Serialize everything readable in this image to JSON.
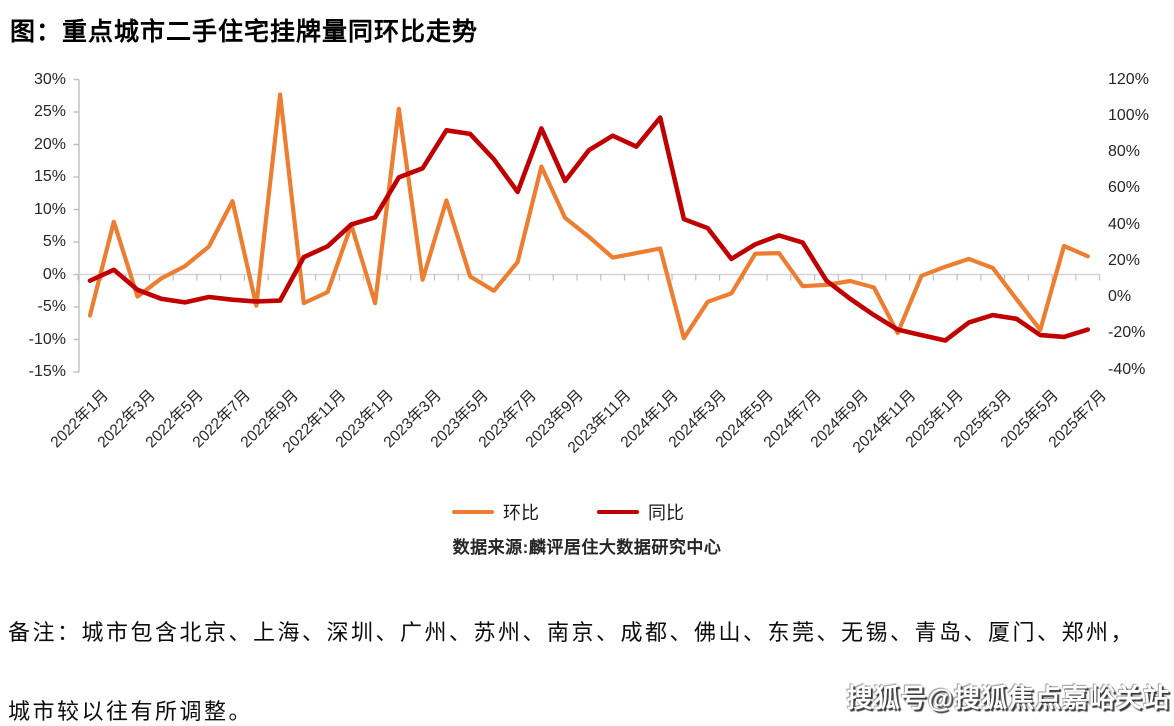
{
  "title": "图：重点城市二手住宅挂牌量同环比走势",
  "legend": [
    {
      "label": "环比",
      "color": "#ED7D31"
    },
    {
      "label": "同比",
      "color": "#C00000"
    }
  ],
  "source": "数据来源:麟评居住大数据研究中心",
  "notes": [
    "备注：城市包含北京、上海、深圳、广州、苏州、南京、成都、佛山、东莞、无锡、青岛、厦门、郑州，",
    "城市较以往有所调整。"
  ],
  "watermark": "搜狐号@搜狐焦点嘉峪关站",
  "chart_data": {
    "type": "line",
    "x": [
      "2022年1月",
      "2022年2月",
      "2022年3月",
      "2022年4月",
      "2022年5月",
      "2022年6月",
      "2022年7月",
      "2022年8月",
      "2022年9月",
      "2022年10月",
      "2022年11月",
      "2022年12月",
      "2023年1月",
      "2023年2月",
      "2023年3月",
      "2023年4月",
      "2023年5月",
      "2023年6月",
      "2023年7月",
      "2023年8月",
      "2023年9月",
      "2023年10月",
      "2023年11月",
      "2023年12月",
      "2024年1月",
      "2024年2月",
      "2024年3月",
      "2024年4月",
      "2024年5月",
      "2024年6月",
      "2024年7月",
      "2024年8月",
      "2024年9月",
      "2024年10月",
      "2024年11月",
      "2024年12月",
      "2025年1月",
      "2025年2月",
      "2025年3月",
      "2025年4月",
      "2025年5月",
      "2025年6月",
      "2025年7月"
    ],
    "x_tick_labels": [
      "2022年1月",
      "2022年3月",
      "2022年5月",
      "2022年7月",
      "2022年9月",
      "2022年11月",
      "2023年1月",
      "2023年3月",
      "2023年5月",
      "2023年7月",
      "2023年9月",
      "2023年11月",
      "2024年1月",
      "2024年3月",
      "2024年5月",
      "2024年7月",
      "2024年9月",
      "2024年11月",
      "2025年1月",
      "2025年3月",
      "2025年5月",
      "2025年7月"
    ],
    "series": [
      {
        "name": "环比",
        "axis": "left",
        "color": "#ED7D31",
        "unit": "%",
        "values": [
          -6.3,
          8.1,
          -3.4,
          -0.6,
          1.3,
          4.3,
          11.3,
          -4.8,
          27.7,
          -4.4,
          -2.7,
          7.6,
          -4.4,
          25.5,
          -0.8,
          11.4,
          -0.3,
          -2.5,
          1.9,
          16.6,
          8.7,
          5.8,
          2.6,
          3.3,
          4.0,
          -9.8,
          -4.2,
          -2.9,
          3.2,
          3.3,
          -1.8,
          -1.6,
          -1.0,
          -2.0,
          -9.0,
          -0.2,
          1.2,
          2.4,
          1.0,
          -3.8,
          -8.5,
          4.4,
          2.8
        ]
      },
      {
        "name": "同比",
        "axis": "right",
        "color": "#C00000",
        "unit": "%",
        "values": [
          9,
          15,
          4,
          -1,
          -3,
          0,
          -1.5,
          -2.5,
          -2,
          22,
          28,
          40,
          44,
          66,
          71,
          92,
          90,
          76,
          58,
          93,
          64,
          81,
          89,
          83,
          99,
          43,
          38,
          21,
          29,
          34,
          30,
          9,
          -1,
          -10,
          -18,
          -21,
          -24,
          -14,
          -10,
          -12,
          -21,
          -22,
          -18
        ]
      }
    ],
    "left_axis": {
      "min": -15,
      "max": 30,
      "step": 5,
      "tick_labels": [
        "30%",
        "25%",
        "20%",
        "15%",
        "10%",
        "5%",
        "0%",
        "-5%",
        "-10%",
        "-15%"
      ]
    },
    "right_axis": {
      "min": -40,
      "max": 120,
      "step": 20,
      "tick_labels": [
        "120%",
        "100%",
        "80%",
        "60%",
        "40%",
        "20%",
        "0%",
        "-20%",
        "-40%"
      ]
    },
    "grid": "zero-line-only",
    "legend_position": "bottom-center"
  }
}
